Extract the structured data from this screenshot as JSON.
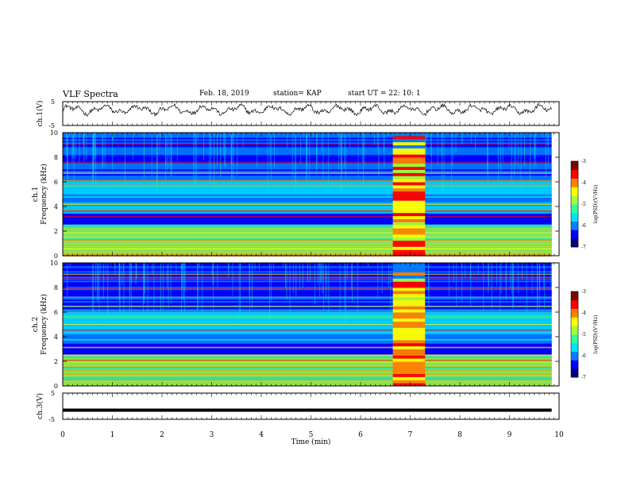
{
  "header": {
    "title": "VLF Spectra",
    "date": "Feb. 18, 2019",
    "station": "station= KAP",
    "start": "start  UT  =   22: 10: 1"
  },
  "colors": {
    "colormap": [
      "#00007f",
      "#0000ff",
      "#0080ff",
      "#00e5ff",
      "#33ff9a",
      "#a6ff33",
      "#ffff00",
      "#ff8000",
      "#ff0000",
      "#800000",
      "#ffffff"
    ]
  },
  "chart_data": [
    {
      "id": "ch1-waveform",
      "type": "line",
      "ylabel": "ch.1(V)",
      "yticks": [
        "5",
        "-5"
      ],
      "ylim": [
        -5,
        5
      ],
      "xlim": [
        0,
        10
      ],
      "description": "noisy waveform oscillating near +1 to +3 V"
    },
    {
      "id": "ch1-spectrogram",
      "type": "heatmap",
      "ylabel": "ch.1",
      "ylabel2": "Frequency  (kHz)",
      "yticks": [
        "0",
        "2",
        "4",
        "6",
        "8",
        "10"
      ],
      "ylim": [
        0,
        10
      ],
      "xlim": [
        0,
        9.85
      ],
      "colorbar": {
        "label": "log(PSD)(V²/Hz)",
        "ticks": [
          "-3",
          "-4",
          "-5",
          "-6",
          "-7"
        ],
        "range": [
          -7,
          -3
        ]
      },
      "bright_interval_min": [
        6.65,
        7.3
      ]
    },
    {
      "id": "ch2-spectrogram",
      "type": "heatmap",
      "ylabel": "ch.2",
      "ylabel2": "Frequency  (kHz)",
      "yticks": [
        "0",
        "2",
        "4",
        "6",
        "8",
        "10"
      ],
      "ylim": [
        0,
        10
      ],
      "xlim": [
        0,
        9.85
      ],
      "colorbar": {
        "label": "log(PSD)(V²/Hz)",
        "ticks": [
          "-3",
          "-4",
          "-5",
          "-6",
          "-7"
        ],
        "range": [
          -7,
          -3
        ]
      },
      "bright_interval_min": [
        6.65,
        7.3
      ]
    },
    {
      "id": "ch3-waveform",
      "type": "line",
      "ylabel": "ch.3(V)",
      "yticks": [
        "5",
        "-5"
      ],
      "ylim": [
        -5,
        5
      ],
      "xlim": [
        0,
        9.85
      ],
      "constant_value": -1.5
    }
  ],
  "xaxis": {
    "label": "Time  (min)",
    "ticks": [
      "0",
      "1",
      "2",
      "3",
      "4",
      "5",
      "6",
      "7",
      "8",
      "9",
      "10"
    ],
    "range": [
      0,
      10
    ]
  }
}
